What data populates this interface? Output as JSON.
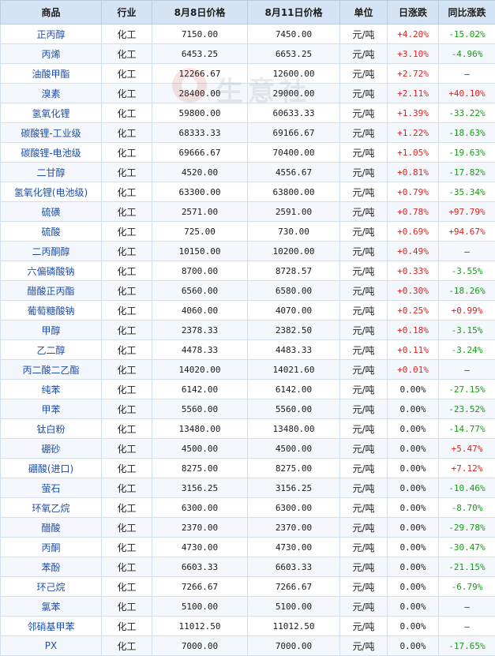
{
  "table": {
    "headers": [
      "商品",
      "行业",
      "8月8日价格",
      "8月11日价格",
      "单位",
      "日涨跌",
      "同比涨跌"
    ],
    "rows": [
      [
        "正丙醇",
        "化工",
        "7150.00",
        "7450.00",
        "元/吨",
        "+4.20%",
        "-15.02%"
      ],
      [
        "丙烯",
        "化工",
        "6453.25",
        "6653.25",
        "元/吨",
        "+3.10%",
        "-4.96%"
      ],
      [
        "油酸甲酯",
        "化工",
        "12266.67",
        "12600.00",
        "元/吨",
        "+2.72%",
        "—"
      ],
      [
        "溴素",
        "化工",
        "28400.00",
        "29000.00",
        "元/吨",
        "+2.11%",
        "+40.10%"
      ],
      [
        "氢氧化锂",
        "化工",
        "59800.00",
        "60633.33",
        "元/吨",
        "+1.39%",
        "-33.22%"
      ],
      [
        "碳酸锂-工业级",
        "化工",
        "68333.33",
        "69166.67",
        "元/吨",
        "+1.22%",
        "-18.63%"
      ],
      [
        "碳酸锂-电池级",
        "化工",
        "69666.67",
        "70400.00",
        "元/吨",
        "+1.05%",
        "-19.63%"
      ],
      [
        "二甘醇",
        "化工",
        "4520.00",
        "4556.67",
        "元/吨",
        "+0.81%",
        "-17.82%"
      ],
      [
        "氢氧化锂(电池级)",
        "化工",
        "63300.00",
        "63800.00",
        "元/吨",
        "+0.79%",
        "-35.34%"
      ],
      [
        "硫磺",
        "化工",
        "2571.00",
        "2591.00",
        "元/吨",
        "+0.78%",
        "+97.79%"
      ],
      [
        "硫酸",
        "化工",
        "725.00",
        "730.00",
        "元/吨",
        "+0.69%",
        "+94.67%"
      ],
      [
        "二丙酮醇",
        "化工",
        "10150.00",
        "10200.00",
        "元/吨",
        "+0.49%",
        "—"
      ],
      [
        "六偏磷酸钠",
        "化工",
        "8700.00",
        "8728.57",
        "元/吨",
        "+0.33%",
        "-3.55%"
      ],
      [
        "醋酸正丙酯",
        "化工",
        "6560.00",
        "6580.00",
        "元/吨",
        "+0.30%",
        "-18.26%"
      ],
      [
        "葡萄糖酸钠",
        "化工",
        "4060.00",
        "4070.00",
        "元/吨",
        "+0.25%",
        "+0.99%"
      ],
      [
        "甲醇",
        "化工",
        "2378.33",
        "2382.50",
        "元/吨",
        "+0.18%",
        "-3.15%"
      ],
      [
        "乙二醇",
        "化工",
        "4478.33",
        "4483.33",
        "元/吨",
        "+0.11%",
        "-3.24%"
      ],
      [
        "丙二酸二乙酯",
        "化工",
        "14020.00",
        "14021.60",
        "元/吨",
        "+0.01%",
        "—"
      ],
      [
        "纯苯",
        "化工",
        "6142.00",
        "6142.00",
        "元/吨",
        "0.00%",
        "-27.15%"
      ],
      [
        "甲苯",
        "化工",
        "5560.00",
        "5560.00",
        "元/吨",
        "0.00%",
        "-23.52%"
      ],
      [
        "钛白粉",
        "化工",
        "13480.00",
        "13480.00",
        "元/吨",
        "0.00%",
        "-14.77%"
      ],
      [
        "硼砂",
        "化工",
        "4500.00",
        "4500.00",
        "元/吨",
        "0.00%",
        "+5.47%"
      ],
      [
        "硼酸(进口)",
        "化工",
        "8275.00",
        "8275.00",
        "元/吨",
        "0.00%",
        "+7.12%"
      ],
      [
        "萤石",
        "化工",
        "3156.25",
        "3156.25",
        "元/吨",
        "0.00%",
        "-10.46%"
      ],
      [
        "环氧乙烷",
        "化工",
        "6300.00",
        "6300.00",
        "元/吨",
        "0.00%",
        "-8.70%"
      ],
      [
        "醋酸",
        "化工",
        "2370.00",
        "2370.00",
        "元/吨",
        "0.00%",
        "-29.78%"
      ],
      [
        "丙酮",
        "化工",
        "4730.00",
        "4730.00",
        "元/吨",
        "0.00%",
        "-30.47%"
      ],
      [
        "苯酚",
        "化工",
        "6603.33",
        "6603.33",
        "元/吨",
        "0.00%",
        "-21.15%"
      ],
      [
        "环己烷",
        "化工",
        "7266.67",
        "7266.67",
        "元/吨",
        "0.00%",
        "-6.79%"
      ],
      [
        "氯苯",
        "化工",
        "5100.00",
        "5100.00",
        "元/吨",
        "0.00%",
        "—"
      ],
      [
        "邻硝基甲苯",
        "化工",
        "11012.50",
        "11012.50",
        "元/吨",
        "0.00%",
        "—"
      ],
      [
        "PX",
        "化工",
        "7000.00",
        "7000.00",
        "元/吨",
        "0.00%",
        "-17.65%"
      ]
    ]
  },
  "watermark": {
    "text": "生意社"
  },
  "colors": {
    "up": "#e02020",
    "down": "#169a16",
    "name_link": "#1f4ea8",
    "header_bg": "#d4e4f4"
  }
}
